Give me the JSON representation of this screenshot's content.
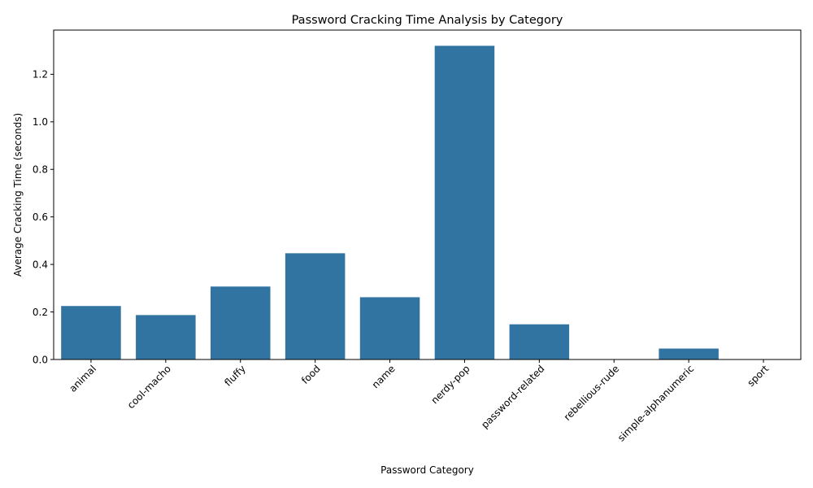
{
  "chart_data": {
    "type": "bar",
    "title": "Password Cracking Time Analysis by Category",
    "xlabel": "Password Category",
    "ylabel": "Average Cracking Time (seconds)",
    "categories": [
      "animal",
      "cool-macho",
      "fluffy",
      "food",
      "name",
      "nerdy-pop",
      "password-related",
      "rebellious-rude",
      "simple-alphanumeric",
      "sport"
    ],
    "values": [
      0.225,
      0.187,
      0.307,
      0.447,
      0.262,
      1.32,
      0.148,
      0.0,
      0.046,
      0.0
    ],
    "ylim": [
      0,
      1.386
    ],
    "yticks": [
      0.0,
      0.2,
      0.4,
      0.6,
      0.8,
      1.0,
      1.2
    ],
    "ytick_labels": [
      "0.0",
      "0.2",
      "0.4",
      "0.6",
      "0.8",
      "1.0",
      "1.2"
    ],
    "grid": false,
    "bar_color": "#3274a1"
  }
}
